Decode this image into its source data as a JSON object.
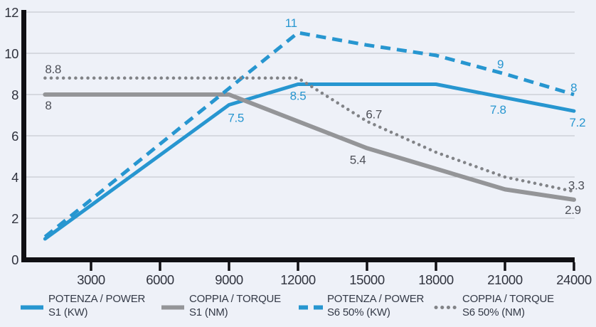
{
  "colors": {
    "background": "#eef1f8",
    "blue": "#2796d0",
    "gray_solid": "#949598",
    "gray_dotted": "#818387",
    "axis": "#101014",
    "gridline": "#bfc1c7",
    "axis_text": "#30333e",
    "gray_label": "#4e5058"
  },
  "chart_data": {
    "type": "line",
    "title": "",
    "xlabel": "",
    "ylabel": "",
    "grid": true,
    "legend_position": "bottom",
    "x_axis": {
      "min": 1000,
      "max": 24000,
      "ticks": [
        3000,
        6000,
        9000,
        12000,
        15000,
        18000,
        21000,
        24000
      ]
    },
    "y_axis": {
      "min": 0,
      "max": 12,
      "ticks": [
        0,
        2,
        4,
        6,
        8,
        10,
        12
      ]
    },
    "series": [
      {
        "id": "power-s1",
        "name": "POTENZA / POWER S1 (KW)",
        "color": "#2796d0",
        "label_color": "#2796d0",
        "dash": "solid",
        "width": 5,
        "points": [
          [
            1000,
            1.0
          ],
          [
            9000,
            7.5
          ],
          [
            12000,
            8.5
          ],
          [
            18000,
            8.5
          ],
          [
            24000,
            7.2
          ]
        ],
        "labels": [
          {
            "text": "7.5",
            "x": 9300,
            "v": 7.5,
            "dy": 24,
            "anchor": "middle"
          },
          {
            "text": "8.5",
            "x": 12000,
            "v": 8.5,
            "dy": 22,
            "anchor": "middle"
          },
          {
            "text": "7.8",
            "x": 20700,
            "v": 7.8,
            "dy": 21,
            "anchor": "middle"
          },
          {
            "text": "7.2",
            "x": 23800,
            "v": 7.2,
            "dy": 22,
            "anchor": "start"
          }
        ]
      },
      {
        "id": "torque-s1",
        "name": "COPPIA / TORQUE S1 (NM)",
        "color": "#949598",
        "label_color": "#4e5058",
        "dash": "solid",
        "width": 6,
        "points": [
          [
            1000,
            8
          ],
          [
            9000,
            8
          ],
          [
            15000,
            5.4
          ],
          [
            21000,
            3.4
          ],
          [
            24000,
            2.9
          ]
        ],
        "labels": [
          {
            "text": "8",
            "x": 1000,
            "v": 8,
            "dy": 21,
            "anchor": "start"
          },
          {
            "text": "5.4",
            "x": 14600,
            "v": 5.4,
            "dy": 22,
            "anchor": "middle"
          },
          {
            "text": "2.9",
            "x": 23600,
            "v": 2.9,
            "dy": 20,
            "anchor": "start"
          }
        ]
      },
      {
        "id": "power-s6",
        "name": "POTENZA / POWER S6 50% (KW)",
        "color": "#2796d0",
        "label_color": "#2796d0",
        "dash": "dashed",
        "width": 5,
        "points": [
          [
            1000,
            1.1
          ],
          [
            12000,
            11
          ],
          [
            15000,
            10.4
          ],
          [
            18000,
            9.9
          ],
          [
            21000,
            9
          ],
          [
            24000,
            8
          ]
        ],
        "labels": [
          {
            "text": "11",
            "x": 11700,
            "v": 11,
            "dy": -8,
            "anchor": "middle"
          },
          {
            "text": "9",
            "x": 20800,
            "v": 9,
            "dy": -8,
            "anchor": "middle"
          },
          {
            "text": "8",
            "x": 23850,
            "v": 8,
            "dy": -4,
            "anchor": "start"
          }
        ]
      },
      {
        "id": "torque-s6",
        "name": "COPPIA / TORQUE S6 50% (NM)",
        "color": "#818387",
        "label_color": "#4e5058",
        "dash": "dotted",
        "width": 4.5,
        "points": [
          [
            1000,
            8.8
          ],
          [
            12000,
            8.8
          ],
          [
            15000,
            6.7
          ],
          [
            18000,
            5.2
          ],
          [
            21000,
            4.0
          ],
          [
            24000,
            3.3
          ]
        ],
        "labels": [
          {
            "text": "8.8",
            "x": 1000,
            "v": 8.8,
            "dy": -7,
            "anchor": "start"
          },
          {
            "text": "6.7",
            "x": 15300,
            "v": 6.7,
            "dy": -4,
            "anchor": "middle"
          },
          {
            "text": "3.3",
            "x": 23750,
            "v": 3.3,
            "dy": -3,
            "anchor": "start"
          }
        ]
      }
    ],
    "legend": {
      "items": [
        {
          "line1": "POTENZA / POWER",
          "line2": "S1 (KW)",
          "series": "power-s1"
        },
        {
          "line1": "COPPIA / TORQUE",
          "line2": "S1 (NM)",
          "series": "torque-s1"
        },
        {
          "line1": "POTENZA / POWER",
          "line2": "S6 50% (KW)",
          "series": "power-s6"
        },
        {
          "line1": "COPPIA / TORQUE",
          "line2": "S6 50% (NM)",
          "series": "torque-s6"
        }
      ]
    }
  }
}
